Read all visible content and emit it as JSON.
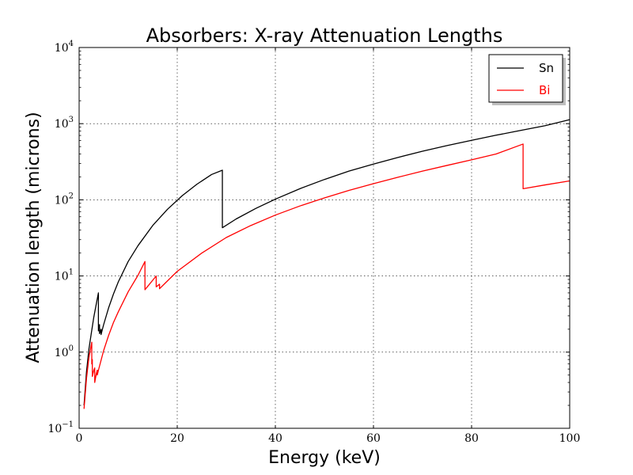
{
  "chart_data": {
    "type": "line",
    "title": "Absorbers: X-ray Attenuation Lengths",
    "xlabel": "Energy (keV)",
    "ylabel": "Attenuation length (microns)",
    "xlim": [
      0,
      100
    ],
    "ylim": [
      0.1,
      10000
    ],
    "yscale": "log",
    "grid": true,
    "legend_position": "top-right",
    "x_ticks": [
      {
        "value": 0,
        "label": "0"
      },
      {
        "value": 20,
        "label": "20"
      },
      {
        "value": 40,
        "label": "40"
      },
      {
        "value": 60,
        "label": "60"
      },
      {
        "value": 80,
        "label": "80"
      },
      {
        "value": 100,
        "label": "100"
      }
    ],
    "y_ticks": [
      {
        "value": 0.1,
        "base": "10",
        "exp": "−1"
      },
      {
        "value": 1,
        "base": "10",
        "exp": "0"
      },
      {
        "value": 10,
        "base": "10",
        "exp": "1"
      },
      {
        "value": 100,
        "base": "10",
        "exp": "2"
      },
      {
        "value": 1000,
        "base": "10",
        "exp": "3"
      },
      {
        "value": 10000,
        "base": "10",
        "exp": "4"
      }
    ],
    "series": [
      {
        "name": "Sn",
        "color": "#000000",
        "points": [
          [
            1.0,
            0.2
          ],
          [
            1.5,
            0.55
          ],
          [
            2.0,
            1.1
          ],
          [
            2.5,
            1.8
          ],
          [
            3.0,
            2.9
          ],
          [
            3.5,
            4.3
          ],
          [
            3.93,
            6.0
          ],
          [
            3.93,
            1.9
          ],
          [
            4.16,
            2.3
          ],
          [
            4.16,
            1.75
          ],
          [
            4.47,
            2.0
          ],
          [
            4.47,
            1.7
          ],
          [
            5.0,
            2.3
          ],
          [
            6.0,
            3.8
          ],
          [
            7.0,
            5.8
          ],
          [
            8.0,
            8.4
          ],
          [
            10.0,
            15.5
          ],
          [
            12.0,
            25
          ],
          [
            15.0,
            46
          ],
          [
            18.0,
            75
          ],
          [
            21.0,
            113
          ],
          [
            24.0,
            160
          ],
          [
            27.0,
            215
          ],
          [
            29.2,
            245
          ],
          [
            29.2,
            43
          ],
          [
            32.0,
            56
          ],
          [
            36.0,
            77
          ],
          [
            40.0,
            102
          ],
          [
            45.0,
            140
          ],
          [
            50.0,
            185
          ],
          [
            55.0,
            238
          ],
          [
            60.0,
            295
          ],
          [
            65.0,
            360
          ],
          [
            70.0,
            435
          ],
          [
            75.0,
            515
          ],
          [
            80.0,
            605
          ],
          [
            85.0,
            705
          ],
          [
            90.0,
            815
          ],
          [
            95.0,
            940
          ],
          [
            100.0,
            1130
          ]
        ]
      },
      {
        "name": "Bi",
        "color": "#ff0000",
        "points": [
          [
            1.0,
            0.18
          ],
          [
            1.5,
            0.45
          ],
          [
            2.0,
            0.85
          ],
          [
            2.58,
            1.35
          ],
          [
            2.58,
            0.7
          ],
          [
            2.69,
            0.8
          ],
          [
            2.69,
            0.48
          ],
          [
            3.0,
            0.58
          ],
          [
            3.18,
            0.62
          ],
          [
            3.18,
            0.4
          ],
          [
            3.5,
            0.52
          ],
          [
            3.7,
            0.58
          ],
          [
            3.7,
            0.5
          ],
          [
            4.0,
            0.6
          ],
          [
            5.0,
            1.05
          ],
          [
            6.0,
            1.65
          ],
          [
            7.0,
            2.45
          ],
          [
            8.0,
            3.4
          ],
          [
            10.0,
            6.2
          ],
          [
            12.0,
            10.2
          ],
          [
            13.42,
            15.5
          ],
          [
            13.42,
            6.6
          ],
          [
            15.71,
            10.0
          ],
          [
            15.71,
            7.2
          ],
          [
            16.39,
            7.8
          ],
          [
            16.39,
            6.8
          ],
          [
            18.0,
            8.6
          ],
          [
            20.0,
            11.5
          ],
          [
            25.0,
            20
          ],
          [
            30.0,
            32
          ],
          [
            35.0,
            46
          ],
          [
            40.0,
            63
          ],
          [
            45.0,
            83
          ],
          [
            50.0,
            106
          ],
          [
            55.0,
            133
          ],
          [
            60.0,
            163
          ],
          [
            65.0,
            198
          ],
          [
            70.0,
            238
          ],
          [
            75.0,
            283
          ],
          [
            80.0,
            335
          ],
          [
            85.0,
            400
          ],
          [
            90.5,
            540
          ],
          [
            90.5,
            140
          ],
          [
            95.0,
            157
          ],
          [
            100.0,
            177
          ]
        ]
      }
    ]
  }
}
